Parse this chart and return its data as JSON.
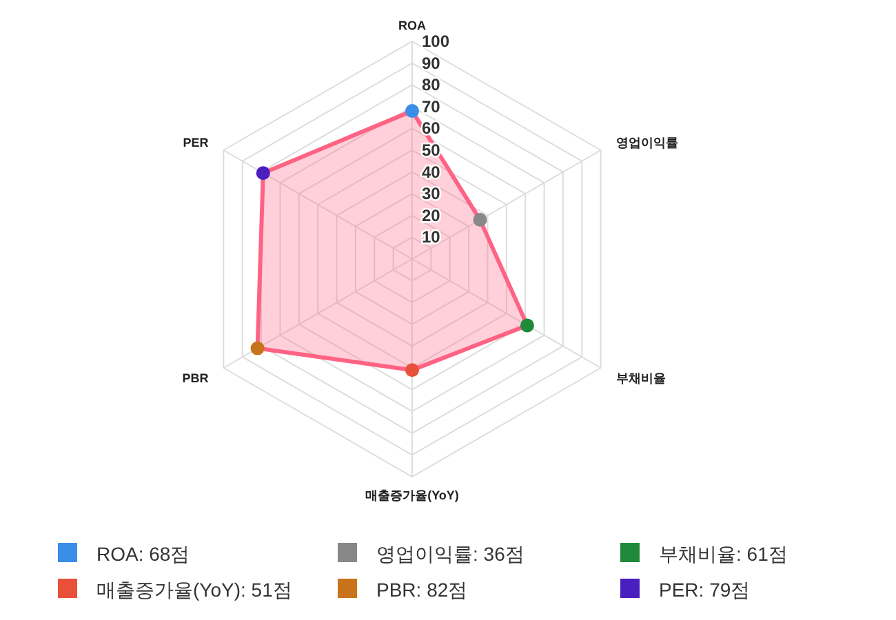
{
  "chart_data": {
    "type": "radar",
    "categories": [
      "ROA",
      "영업이익률",
      "부채비율",
      "매출증가율(YoY)",
      "PBR",
      "PER"
    ],
    "series": [
      {
        "color": "#ff6384",
        "values": [
          68,
          36,
          61,
          51,
          82,
          79
        ],
        "colors": [
          "#3a8ee8",
          "#888888",
          "#1e8a3a",
          "#e8503a",
          "#c8731a",
          "#4a1fc0"
        ]
      }
    ],
    "value_labels": [
      "ROA: 68점",
      "영업이익률: 36점",
      "부채비율: 61점",
      "매출증가율(YoY): 51점",
      "PBR: 82점",
      "PER: 79점"
    ],
    "ylim": [
      0,
      100
    ],
    "yticks": [
      10,
      20,
      30,
      40,
      50,
      60,
      70,
      80,
      90,
      100
    ],
    "grid": true,
    "marker": "circle"
  }
}
